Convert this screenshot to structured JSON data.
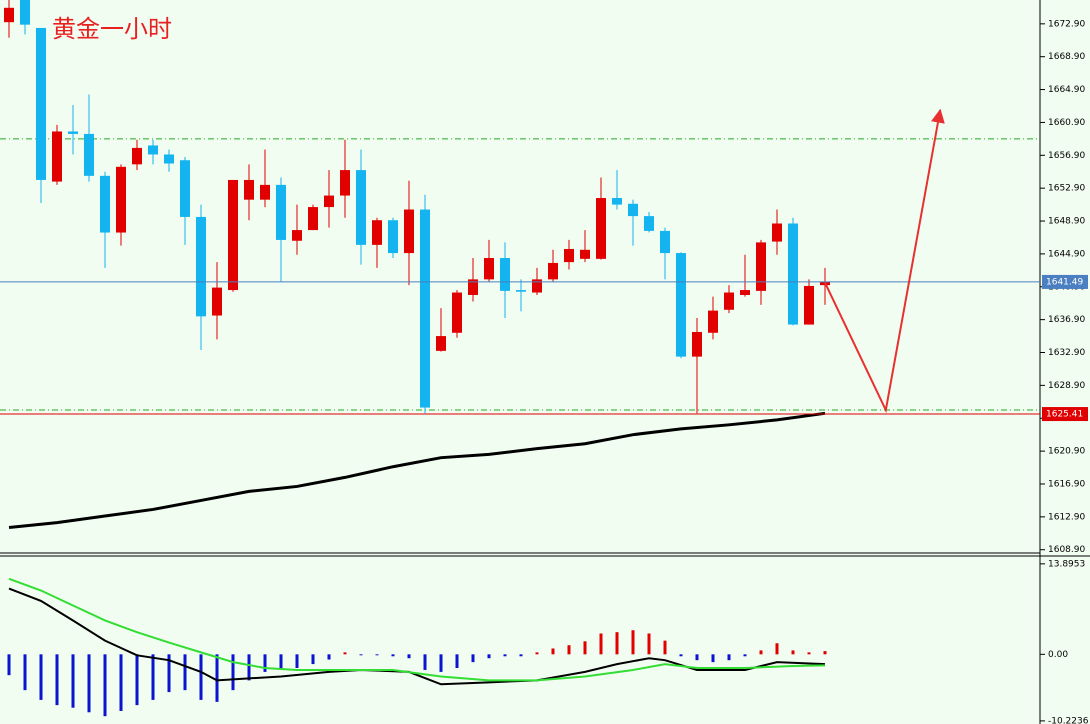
{
  "chart_data": [
    {
      "type": "candlestick",
      "title": "黄金一小时",
      "up_color": "#e00000",
      "down_color": "#13b4ef",
      "open": [
        1673.1,
        1675.8,
        1672.4,
        1653.7,
        1659.8,
        1659.5,
        1654.4,
        1647.5,
        1655.8,
        1658.1,
        1657.0,
        1656.3,
        1649.4,
        1637.4,
        1640.5,
        1651.5,
        1651.5,
        1653.3,
        1646.5,
        1647.8,
        1650.6,
        1652.0,
        1655.1,
        1646.0,
        1649.0,
        1645.0,
        1650.3,
        1633.1,
        1635.3,
        1639.9,
        1641.8,
        1644.4,
        1640.5,
        1640.2,
        1641.8,
        1643.9,
        1644.3,
        1644.3,
        1651.7,
        1651.0,
        1649.5,
        1647.7,
        1645.0,
        1632.4,
        1635.3,
        1638.1,
        1639.9,
        1640.4,
        1646.4,
        1648.6,
        1636.3,
        1641.1
      ],
      "high": [
        1675.8,
        1675.8,
        1672.4,
        1660.6,
        1663.0,
        1664.3,
        1654.9,
        1655.8,
        1658.8,
        1658.8,
        1657.6,
        1656.7,
        1650.9,
        1643.9,
        1653.9,
        1655.8,
        1657.6,
        1654.2,
        1650.9,
        1650.9,
        1655.1,
        1658.8,
        1657.6,
        1649.3,
        1649.3,
        1653.8,
        1652.1,
        1638.3,
        1640.5,
        1644.4,
        1646.6,
        1646.3,
        1641.8,
        1643.2,
        1645.4,
        1646.6,
        1647.8,
        1654.2,
        1655.1,
        1651.5,
        1650.0,
        1648.1,
        1645.1,
        1637.1,
        1639.7,
        1641.1,
        1644.8,
        1646.6,
        1650.3,
        1649.3,
        1641.8,
        1643.2
      ],
      "low": [
        1671.2,
        1671.6,
        1651.1,
        1653.3,
        1657.0,
        1653.7,
        1643.2,
        1645.9,
        1655.1,
        1655.8,
        1654.9,
        1646.0,
        1633.2,
        1634.5,
        1640.3,
        1649.0,
        1650.6,
        1641.5,
        1644.8,
        1647.8,
        1648.1,
        1649.3,
        1643.6,
        1643.2,
        1644.4,
        1641.1,
        1625.5,
        1633.0,
        1634.7,
        1639.1,
        1641.5,
        1637.1,
        1637.9,
        1639.9,
        1641.5,
        1643.0,
        1643.9,
        1644.2,
        1650.3,
        1645.9,
        1647.5,
        1641.8,
        1632.2,
        1625.5,
        1634.5,
        1637.7,
        1639.7,
        1638.7,
        1644.8,
        1636.2,
        1636.3,
        1638.7
      ],
      "close": [
        1674.85,
        1672.8,
        1653.9,
        1659.8,
        1659.5,
        1654.4,
        1647.5,
        1655.5,
        1657.8,
        1657.0,
        1655.9,
        1649.4,
        1637.3,
        1640.8,
        1653.9,
        1653.9,
        1653.3,
        1646.6,
        1647.8,
        1650.6,
        1652.0,
        1655.1,
        1646.0,
        1649.0,
        1645.0,
        1650.3,
        1626.2,
        1634.9,
        1640.2,
        1641.8,
        1644.4,
        1640.4,
        1640.3,
        1641.8,
        1643.8,
        1645.5,
        1645.4,
        1651.7,
        1650.9,
        1649.5,
        1647.7,
        1645.0,
        1632.4,
        1635.4,
        1638.0,
        1640.2,
        1640.5,
        1646.3,
        1648.6,
        1636.3,
        1641.0,
        1641.5
      ],
      "ma": {
        "color": "#000000",
        "x": [
          0,
          3,
          6,
          9,
          12,
          15,
          18,
          21,
          24,
          27,
          30,
          33,
          36,
          39,
          42,
          45,
          48,
          51
        ],
        "values": [
          1611.6,
          1612.2,
          1613.0,
          1613.8,
          1614.9,
          1616.0,
          1616.6,
          1617.7,
          1619.0,
          1620.1,
          1620.5,
          1621.2,
          1621.8,
          1622.9,
          1623.6,
          1624.1,
          1624.7,
          1625.5
        ]
      },
      "price_lines": [
        {
          "value": 1641.49,
          "color": "#4a7fc1"
        },
        {
          "value": 1625.41,
          "color": "#e00000"
        }
      ],
      "levels": {
        "color": "#22aa22",
        "values": [
          1658.9,
          1625.9
        ]
      },
      "projection": {
        "color": "#e83030",
        "x": [
          51,
          54.8,
          58.2
        ],
        "values": [
          1641.4,
          1625.9,
          1662.4
        ]
      },
      "ylim": [
        1608.5,
        1675.8
      ],
      "yticks": [
        {
          "value": 1672.9,
          "label": "1672.90"
        },
        {
          "value": 1668.9,
          "label": "1668.90"
        },
        {
          "value": 1664.9,
          "label": "1664.90"
        },
        {
          "value": 1660.9,
          "label": "1660.90"
        },
        {
          "value": 1656.9,
          "label": "1656.90"
        },
        {
          "value": 1652.9,
          "label": "1652.90"
        },
        {
          "value": 1648.9,
          "label": "1648.90"
        },
        {
          "value": 1644.9,
          "label": "1644.90"
        },
        {
          "value": 1640.9,
          "label": "1640.90"
        },
        {
          "value": 1636.9,
          "label": "1636.90"
        },
        {
          "value": 1632.9,
          "label": "1632.90"
        },
        {
          "value": 1628.9,
          "label": "1628.90"
        },
        {
          "value": 1624.9,
          "label": "1624.90"
        },
        {
          "value": 1620.9,
          "label": "1620.90"
        },
        {
          "value": 1616.9,
          "label": "1616.90"
        },
        {
          "value": 1612.9,
          "label": "1612.90"
        },
        {
          "value": 1608.9,
          "label": "1608.90"
        }
      ]
    },
    {
      "type": "macd",
      "up_color": "#e00000",
      "down_color": "#0a14d0",
      "histogram": [
        -3.2,
        -5.5,
        -7.0,
        -7.8,
        -8.2,
        -8.9,
        -9.5,
        -8.7,
        -7.8,
        -7.0,
        -5.8,
        -5.5,
        -7.0,
        -7.3,
        -5.5,
        -4.0,
        -2.7,
        -2.4,
        -2.1,
        -1.5,
        -0.8,
        0.3,
        -0.15,
        -0.15,
        -0.3,
        -0.6,
        -2.4,
        -2.7,
        -2.1,
        -1.2,
        -0.6,
        -0.3,
        -0.3,
        0.3,
        0.9,
        1.4,
        2.0,
        3.2,
        3.4,
        3.7,
        3.2,
        2.1,
        -0.3,
        -0.9,
        -1.2,
        -0.9,
        -0.3,
        0.6,
        1.7,
        0.6,
        0.3,
        0.5
      ],
      "lines": [
        {
          "color": "#000000",
          "x": [
            0,
            2,
            4,
            6,
            8,
            10,
            12,
            13,
            15,
            17,
            20,
            22,
            25,
            27,
            30,
            33,
            36,
            38,
            40,
            41,
            43,
            46,
            48,
            51
          ],
          "values": [
            10.1,
            8.2,
            5.2,
            2.1,
            -0.15,
            -0.9,
            -2.7,
            -4.0,
            -3.7,
            -3.4,
            -2.7,
            -2.4,
            -2.7,
            -4.6,
            -4.3,
            -4.0,
            -2.7,
            -1.5,
            -0.6,
            -0.9,
            -2.4,
            -2.4,
            -1.2,
            -1.5
          ]
        },
        {
          "color": "#33dd33",
          "x": [
            0,
            2,
            4,
            6,
            8,
            10,
            12,
            14,
            16,
            18,
            21,
            24,
            27,
            30,
            33,
            36,
            39,
            41,
            43,
            46,
            49,
            51
          ],
          "values": [
            11.6,
            9.8,
            7.5,
            5.2,
            3.4,
            1.8,
            0.3,
            -1.2,
            -2.1,
            -2.4,
            -2.4,
            -2.4,
            -3.4,
            -4.0,
            -4.0,
            -3.4,
            -2.4,
            -1.5,
            -2.1,
            -2.1,
            -1.8,
            -1.7
          ]
        }
      ],
      "ylim": [
        -10.7,
        15.1
      ],
      "yticks": [
        13.8953,
        {
          "value": 0,
          "label": "0.00"
        },
        -10.2236
      ]
    }
  ]
}
